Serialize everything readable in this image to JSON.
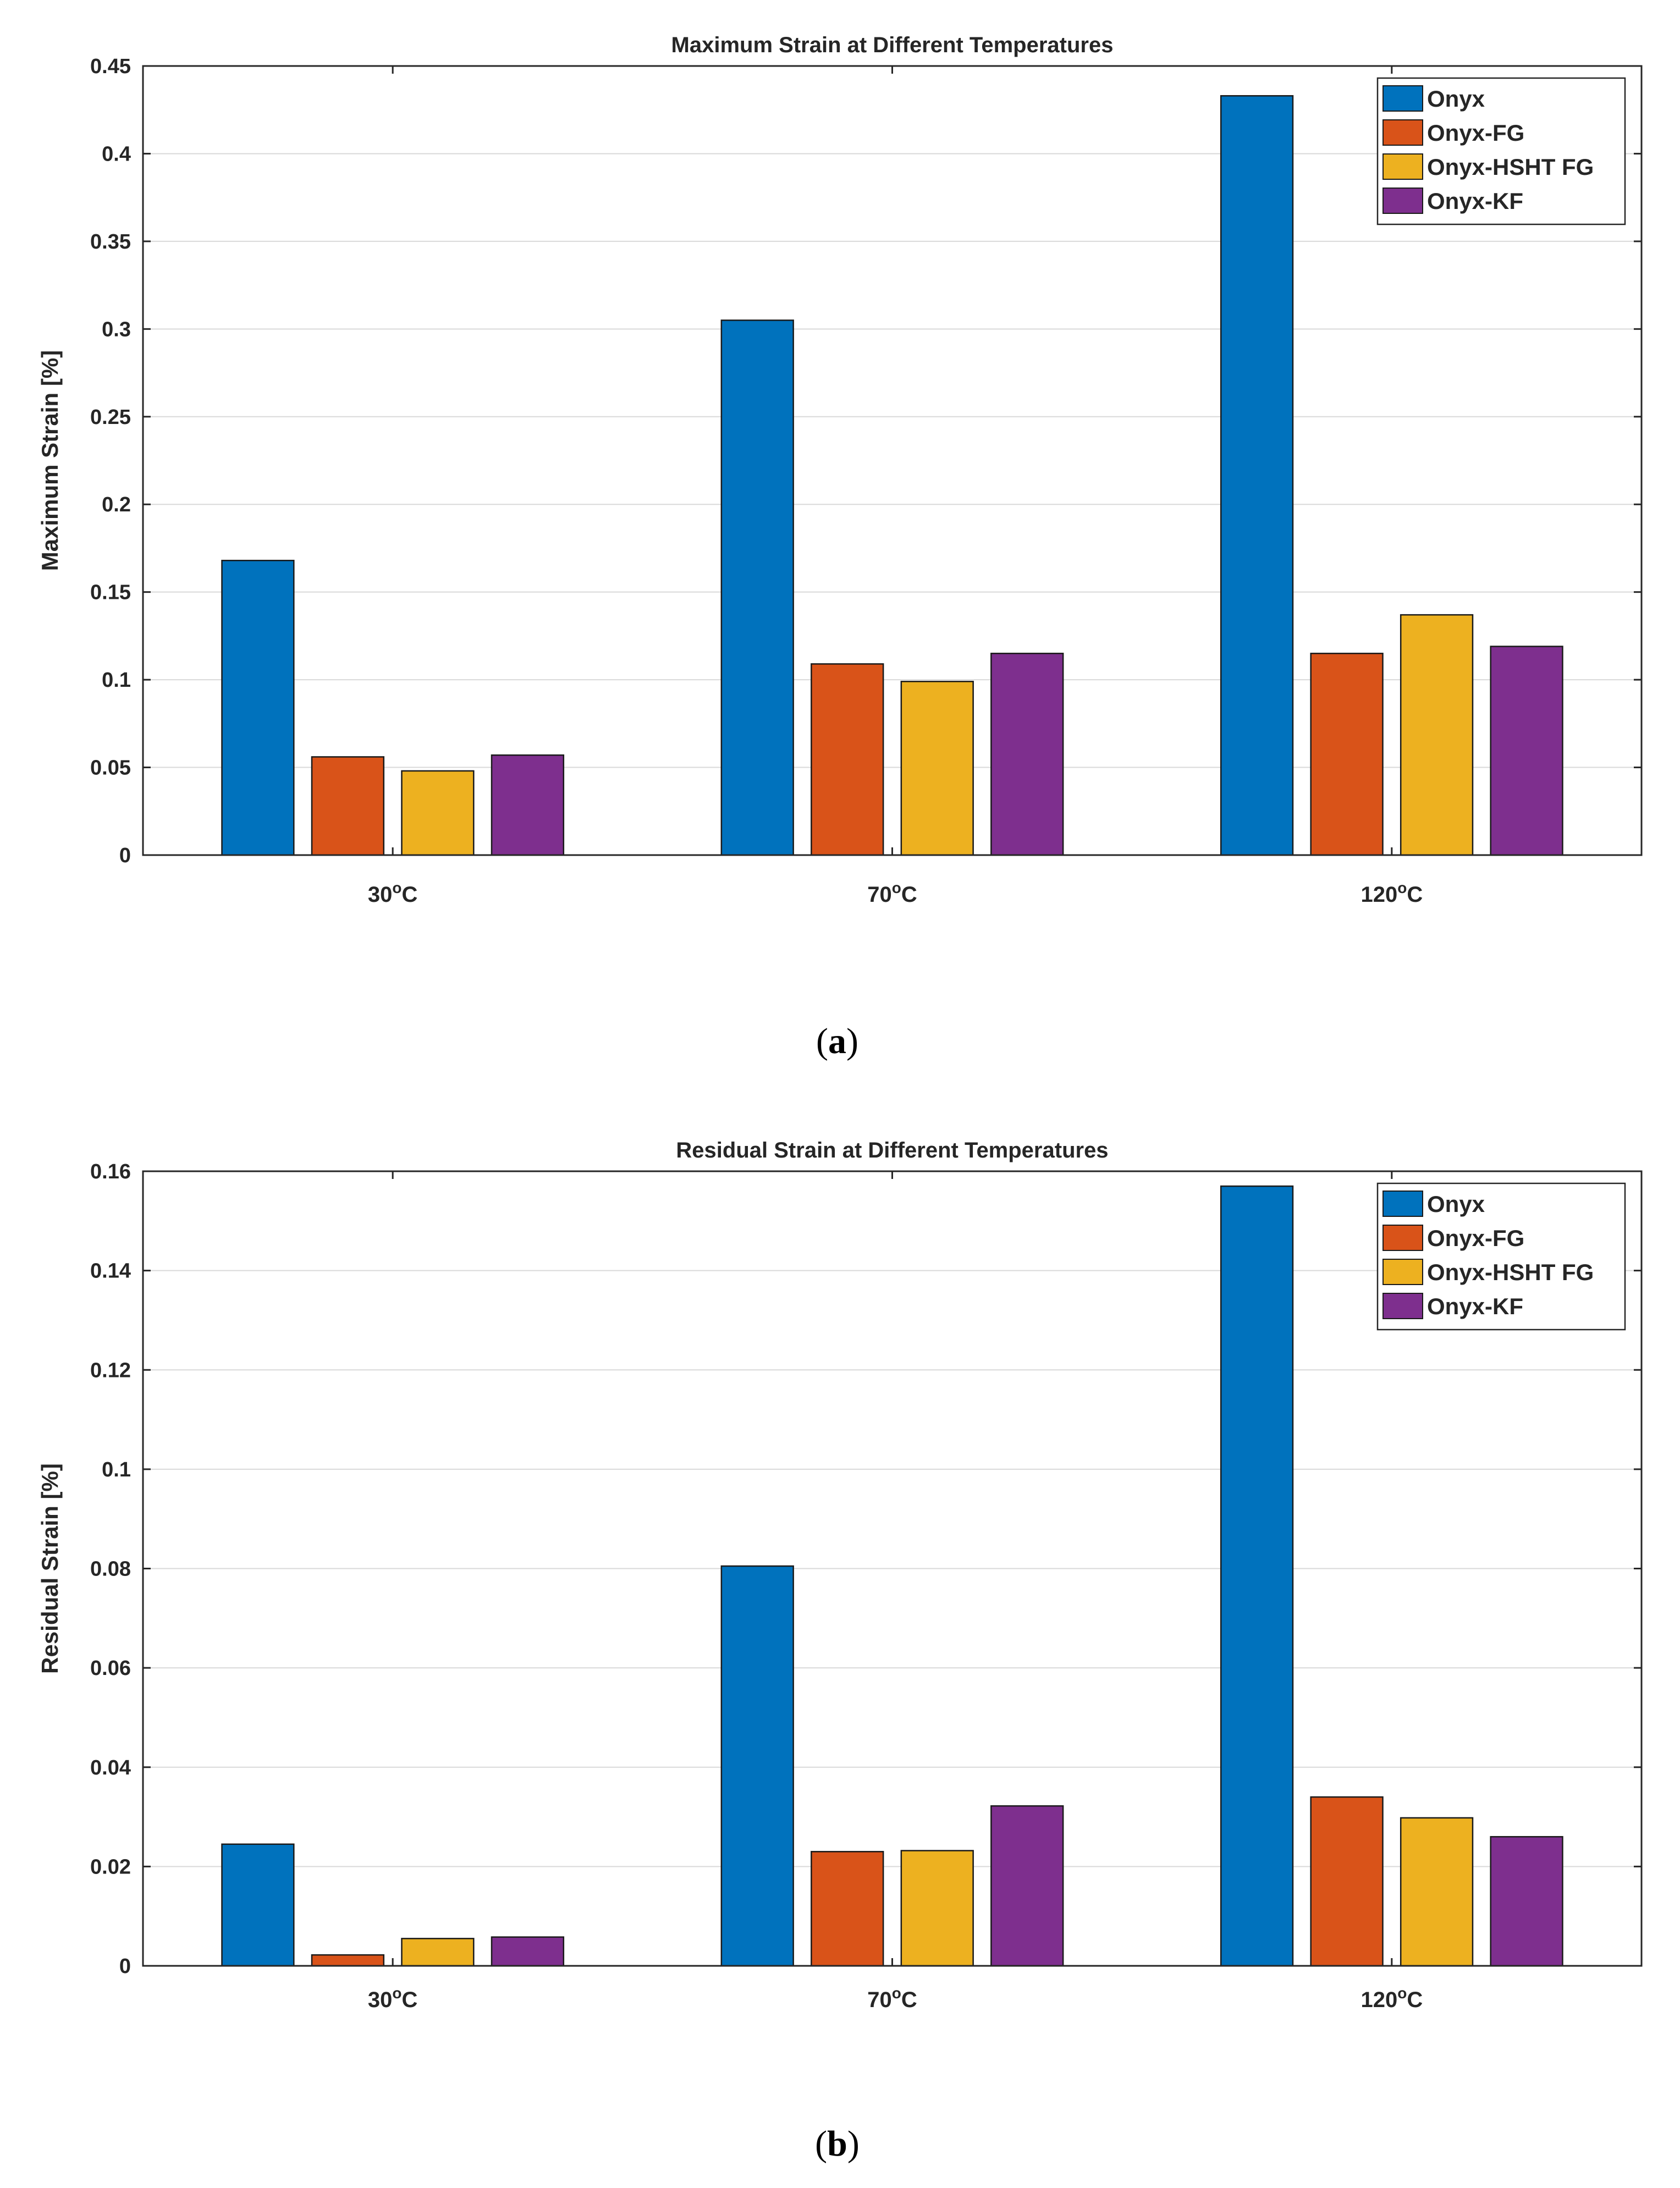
{
  "chart_data": [
    {
      "type": "bar",
      "title": "Maximum Strain at Different Temperatures",
      "panel_label": "a",
      "xlabel": "",
      "ylabel": "Maximum Strain [%]",
      "ylim": [
        0,
        0.45
      ],
      "yticks": [
        "0",
        "0.05",
        "0.1",
        "0.15",
        "0.2",
        "0.25",
        "0.3",
        "0.35",
        "0.4",
        "0.45"
      ],
      "categories": [
        {
          "base": "30",
          "unit": "C"
        },
        {
          "base": "70",
          "unit": "C"
        },
        {
          "base": "120",
          "unit": "C"
        }
      ],
      "series": [
        {
          "name": "Onyx",
          "color": "#0072BD",
          "values": [
            0.168,
            0.305,
            0.433
          ]
        },
        {
          "name": "Onyx-FG",
          "color": "#D95319",
          "values": [
            0.056,
            0.109,
            0.115
          ]
        },
        {
          "name": "Onyx-HSHT FG",
          "color": "#EDB120",
          "values": [
            0.048,
            0.099,
            0.137
          ]
        },
        {
          "name": "Onyx-KF",
          "color": "#7E2F8E",
          "values": [
            0.057,
            0.115,
            0.119
          ]
        }
      ],
      "legend": "top-right",
      "grid": true
    },
    {
      "type": "bar",
      "title": "Residual Strain at Different Temperatures",
      "panel_label": "b",
      "xlabel": "",
      "ylabel": "Residual Strain [%]",
      "ylim": [
        0,
        0.16
      ],
      "yticks": [
        "0",
        "0.02",
        "0.04",
        "0.06",
        "0.08",
        "0.1",
        "0.12",
        "0.14",
        "0.16"
      ],
      "categories": [
        {
          "base": "30",
          "unit": "C"
        },
        {
          "base": "70",
          "unit": "C"
        },
        {
          "base": "120",
          "unit": "C"
        }
      ],
      "series": [
        {
          "name": "Onyx",
          "color": "#0072BD",
          "values": [
            0.0245,
            0.0805,
            0.157
          ]
        },
        {
          "name": "Onyx-FG",
          "color": "#D95319",
          "values": [
            0.0022,
            0.023,
            0.034
          ]
        },
        {
          "name": "Onyx-HSHT FG",
          "color": "#EDB120",
          "values": [
            0.0055,
            0.0232,
            0.0298
          ]
        },
        {
          "name": "Onyx-KF",
          "color": "#7E2F8E",
          "values": [
            0.0058,
            0.0322,
            0.026
          ]
        }
      ],
      "legend": "top-right",
      "grid": true
    }
  ]
}
